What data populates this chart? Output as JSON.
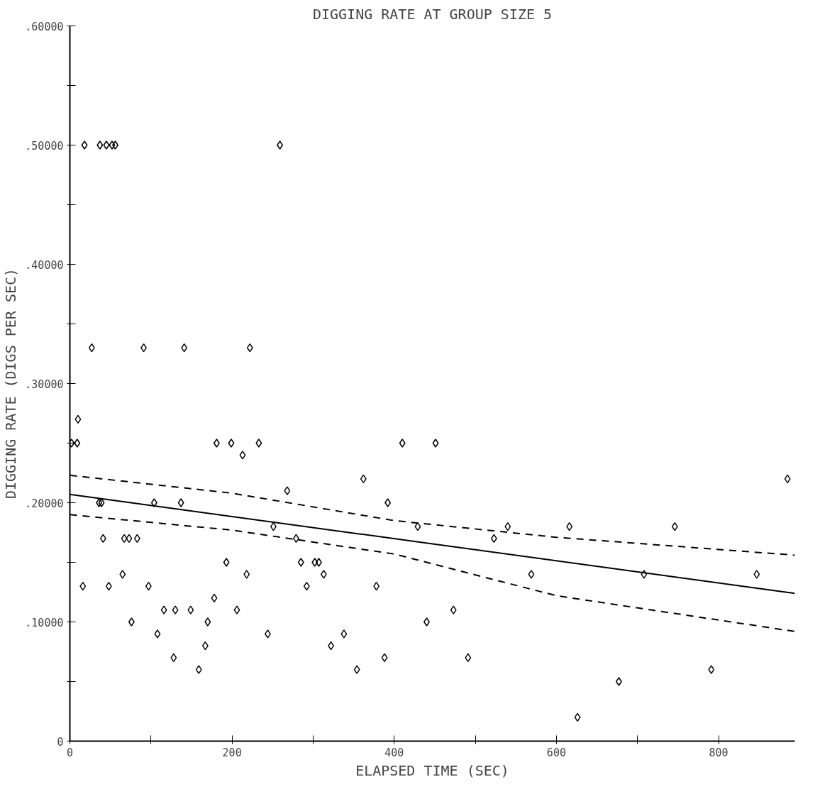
{
  "chart_data": {
    "type": "scatter",
    "title": "DIGGING RATE AT GROUP SIZE 5",
    "xlabel": "ELAPSED TIME (SEC)",
    "ylabel": "DIGGING RATE (DIGS PER SEC)",
    "xlim": [
      0,
      894
    ],
    "ylim": [
      0,
      0.6
    ],
    "xticks": [
      0,
      {
        "value": 100,
        "label": null
      },
      200,
      {
        "value": 300,
        "label": null
      },
      400,
      {
        "value": 500,
        "label": null
      },
      600,
      {
        "value": 700,
        "label": null
      },
      800
    ],
    "yticks": [
      0,
      {
        "value": 0.05,
        "label": null
      },
      {
        "value": 0.1,
        "label": ".10000"
      },
      {
        "value": 0.15,
        "label": null
      },
      {
        "value": 0.2,
        "label": ".20000"
      },
      {
        "value": 0.25,
        "label": null
      },
      {
        "value": 0.3,
        "label": ".30000"
      },
      {
        "value": 0.35,
        "label": null
      },
      {
        "value": 0.4,
        "label": ".40000"
      },
      {
        "value": 0.45,
        "label": null
      },
      {
        "value": 0.5,
        "label": ".50000"
      },
      {
        "value": 0.55,
        "label": null
      },
      {
        "value": 0.6,
        "label": ".60000"
      }
    ],
    "grid": false,
    "series": [
      {
        "color": "#000000",
        "marker": "diamond",
        "x": [
          18,
          37,
          45,
          52,
          56,
          259,
          27,
          91,
          141,
          222,
          10,
          2,
          9,
          181,
          199,
          233,
          410,
          451,
          213,
          362,
          885,
          268,
          36,
          39,
          104,
          137,
          392,
          251,
          429,
          540,
          616,
          746,
          41,
          67,
          73,
          83,
          279,
          523,
          193,
          285,
          302,
          307,
          65,
          218,
          313,
          569,
          708,
          847,
          16,
          48,
          97,
          292,
          378,
          178,
          116,
          130,
          149,
          206,
          473,
          76,
          170,
          440,
          108,
          244,
          338,
          167,
          322,
          128,
          388,
          491,
          159,
          354,
          791,
          677,
          626
        ],
        "values": [
          0.5,
          0.5,
          0.5,
          0.5,
          0.5,
          0.5,
          0.33,
          0.33,
          0.33,
          0.33,
          0.27,
          0.25,
          0.25,
          0.25,
          0.25,
          0.25,
          0.25,
          0.25,
          0.24,
          0.22,
          0.22,
          0.21,
          0.2,
          0.2,
          0.2,
          0.2,
          0.2,
          0.18,
          0.18,
          0.18,
          0.18,
          0.18,
          0.17,
          0.17,
          0.17,
          0.17,
          0.17,
          0.17,
          0.15,
          0.15,
          0.15,
          0.15,
          0.14,
          0.14,
          0.14,
          0.14,
          0.14,
          0.14,
          0.13,
          0.13,
          0.13,
          0.13,
          0.13,
          0.12,
          0.11,
          0.11,
          0.11,
          0.11,
          0.11,
          0.1,
          0.1,
          0.1,
          0.09,
          0.09,
          0.09,
          0.08,
          0.08,
          0.07,
          0.07,
          0.07,
          0.06,
          0.06,
          0.06,
          0.05,
          0.02
        ]
      },
      {
        "type": "line",
        "color": "#000000",
        "line_style": "solid",
        "marker": "none",
        "x": [
          0,
          894
        ],
        "values": [
          0.207,
          0.124
        ]
      },
      {
        "type": "line",
        "color": "#000000",
        "line_style": "dashed",
        "marker": "none",
        "x": [
          0,
          200,
          400,
          600,
          894
        ],
        "values": [
          0.223,
          0.208,
          0.185,
          0.171,
          0.156
        ]
      },
      {
        "type": "line",
        "color": "#000000",
        "line_style": "dashed",
        "marker": "none",
        "x": [
          0,
          200,
          400,
          600,
          894
        ],
        "values": [
          0.19,
          0.177,
          0.157,
          0.122,
          0.092
        ]
      }
    ]
  }
}
